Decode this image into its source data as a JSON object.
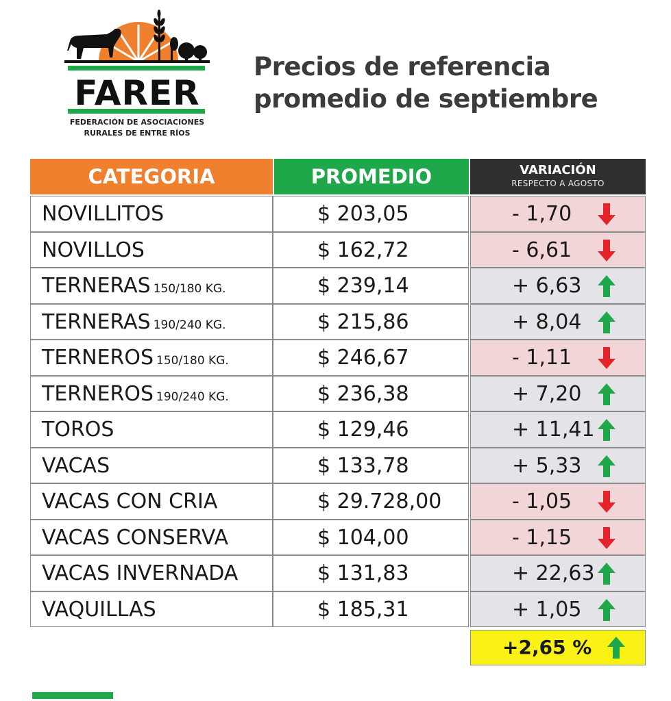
{
  "logo": {
    "name": "FARER",
    "subtitle_line1": "FEDERACIÓN DE ASOCIACIONES",
    "subtitle_line2": "RURALES DE ENTRE RÍOS"
  },
  "title": {
    "line1": "Precios de referencia",
    "line2": "promedio de septiembre"
  },
  "table": {
    "headers": {
      "categoria": "CATEGORIA",
      "promedio": "PROMEDIO",
      "variacion": "VARIACIÓN",
      "variacion_sub": "RESPECTO A AGOSTO"
    },
    "rows": [
      {
        "name": "NOVILLITOS",
        "sub": "",
        "price": "$ 203,05",
        "variation": "- 1,70",
        "direction": "down"
      },
      {
        "name": "NOVILLOS",
        "sub": "",
        "price": "$ 162,72",
        "variation": "- 6,61",
        "direction": "down"
      },
      {
        "name": "TERNERAS",
        "sub": "150/180 KG.",
        "price": "$ 239,14",
        "variation": "+ 6,63",
        "direction": "up"
      },
      {
        "name": "TERNERAS",
        "sub": "190/240 KG.",
        "price": "$ 215,86",
        "variation": "+ 8,04",
        "direction": "up"
      },
      {
        "name": "TERNEROS",
        "sub": "150/180 KG.",
        "price": "$ 246,67",
        "variation": "- 1,11",
        "direction": "down"
      },
      {
        "name": "TERNEROS",
        "sub": "190/240 KG.",
        "price": "$ 236,38",
        "variation": "+ 7,20",
        "direction": "up"
      },
      {
        "name": "TOROS",
        "sub": "",
        "price": "$ 129,46",
        "variation": "+ 11,41",
        "direction": "up"
      },
      {
        "name": "VACAS",
        "sub": "",
        "price": "$ 133,78",
        "variation": "+ 5,33",
        "direction": "up"
      },
      {
        "name": "VACAS CON CRIA",
        "sub": "",
        "price": "$ 29.728,00",
        "variation": "- 1,05",
        "direction": "down"
      },
      {
        "name": "VACAS CONSERVA",
        "sub": "",
        "price": "$ 104,00",
        "variation": "- 1,15",
        "direction": "down"
      },
      {
        "name": "VACAS INVERNADA",
        "sub": "",
        "price": "$ 131,83",
        "variation": "+ 22,63",
        "direction": "up"
      },
      {
        "name": "VAQUILLAS",
        "sub": "",
        "price": "$ 185,31",
        "variation": "+ 1,05",
        "direction": "up"
      }
    ],
    "total": {
      "variation": "+2,65 %",
      "direction": "up"
    }
  },
  "colors": {
    "orange": "#f07f2e",
    "green": "#1fa84a",
    "dark": "#2f2f2f",
    "negative_bg": "#f2d6d7",
    "positive_bg": "#e4e4e8",
    "total_bg": "#fbf215",
    "arrow_down": "#e3242b",
    "arrow_up": "#1fa84a"
  }
}
